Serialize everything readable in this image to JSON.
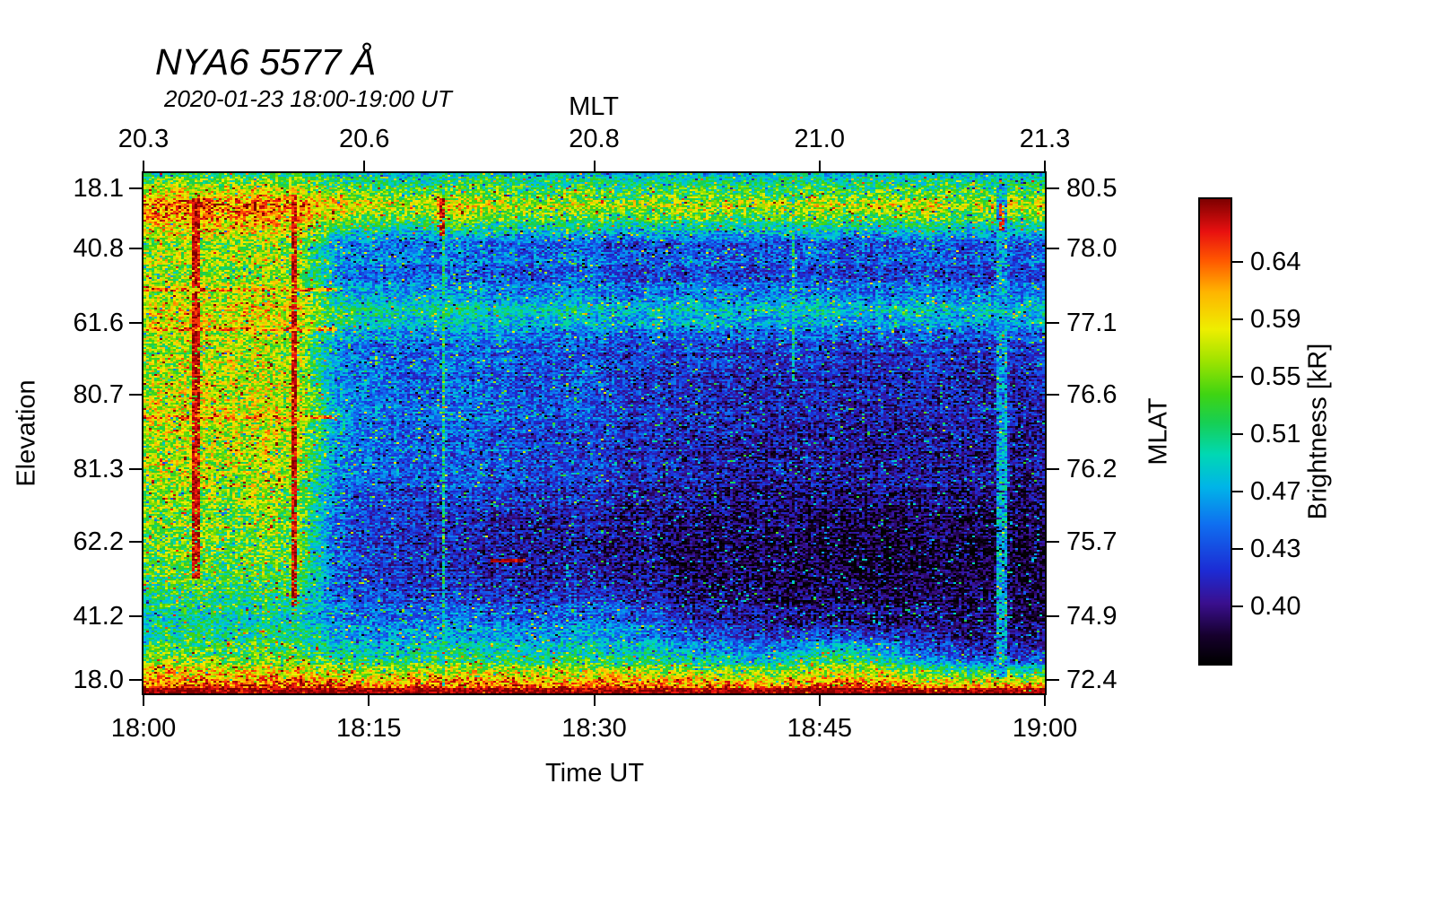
{
  "title": "NYA6 5577 Å",
  "subtitle": "2020-01-23 18:00-19:00 UT",
  "chart_data": {
    "type": "heatmap",
    "title": "NYA6 5577 Å",
    "subtitle": "2020-01-23 18:00-19:00 UT",
    "time_range": [
      "18:00",
      "19:00"
    ],
    "x_axis": {
      "label": "Time UT",
      "ticks": [
        {
          "pos": 0.0,
          "label": "18:00"
        },
        {
          "pos": 0.25,
          "label": "18:15"
        },
        {
          "pos": 0.5,
          "label": "18:30"
        },
        {
          "pos": 0.75,
          "label": "18:45"
        },
        {
          "pos": 1.0,
          "label": "19:00"
        }
      ]
    },
    "top_axis": {
      "label": "MLT",
      "ticks": [
        {
          "pos": 0.0,
          "label": "20.3"
        },
        {
          "pos": 0.245,
          "label": "20.6"
        },
        {
          "pos": 0.5,
          "label": "20.8"
        },
        {
          "pos": 0.75,
          "label": "21.0"
        },
        {
          "pos": 1.0,
          "label": "21.3"
        }
      ]
    },
    "y_axis_left": {
      "label": "Elevation",
      "ticks": [
        {
          "pos": 0.029,
          "label": "18.1"
        },
        {
          "pos": 0.145,
          "label": "40.8"
        },
        {
          "pos": 0.288,
          "label": "61.6"
        },
        {
          "pos": 0.426,
          "label": "80.7"
        },
        {
          "pos": 0.569,
          "label": "81.3"
        },
        {
          "pos": 0.709,
          "label": "62.2"
        },
        {
          "pos": 0.852,
          "label": "41.2"
        },
        {
          "pos": 0.974,
          "label": "18.0"
        }
      ]
    },
    "y_axis_right": {
      "label": "MLAT",
      "ticks": [
        {
          "pos": 0.029,
          "label": "80.5"
        },
        {
          "pos": 0.145,
          "label": "78.0"
        },
        {
          "pos": 0.288,
          "label": "77.1"
        },
        {
          "pos": 0.426,
          "label": "76.6"
        },
        {
          "pos": 0.569,
          "label": "76.2"
        },
        {
          "pos": 0.709,
          "label": "75.7"
        },
        {
          "pos": 0.852,
          "label": "74.9"
        },
        {
          "pos": 0.974,
          "label": "72.4"
        }
      ]
    },
    "colorbar": {
      "label": "Brightness [kR]",
      "vmin": 0.37,
      "vmax": 0.67,
      "ticks": [
        {
          "pos": 0.135,
          "label": "0.64"
        },
        {
          "pos": 0.259,
          "label": "0.59"
        },
        {
          "pos": 0.382,
          "label": "0.55"
        },
        {
          "pos": 0.506,
          "label": "0.51"
        },
        {
          "pos": 0.63,
          "label": "0.47"
        },
        {
          "pos": 0.753,
          "label": "0.43"
        },
        {
          "pos": 0.877,
          "label": "0.40"
        }
      ],
      "stops": [
        [
          0.0,
          "#000000"
        ],
        [
          0.06,
          "#16002c"
        ],
        [
          0.13,
          "#3a0f8e"
        ],
        [
          0.2,
          "#1c2bd4"
        ],
        [
          0.3,
          "#0f6ff0"
        ],
        [
          0.38,
          "#00b4e8"
        ],
        [
          0.45,
          "#00d8b4"
        ],
        [
          0.52,
          "#17cf52"
        ],
        [
          0.58,
          "#3fd412"
        ],
        [
          0.65,
          "#9ce300"
        ],
        [
          0.72,
          "#eeee00"
        ],
        [
          0.8,
          "#ffb400"
        ],
        [
          0.87,
          "#ff5500"
        ],
        [
          0.93,
          "#e81010"
        ],
        [
          1.0,
          "#7e0000"
        ]
      ]
    },
    "grid": {
      "comment": "coarse brightness field in kR, 16 rows (top elev 18.1 to bottom elev 18.0) x 24 cols (18:00 to 19:00)",
      "values": [
        [
          0.52,
          0.53,
          0.52,
          0.53,
          0.52,
          0.5,
          0.5,
          0.49,
          0.5,
          0.5,
          0.49,
          0.5,
          0.49,
          0.49,
          0.5,
          0.49,
          0.49,
          0.5,
          0.49,
          0.49,
          0.5,
          0.49,
          0.49,
          0.5
        ],
        [
          0.63,
          0.64,
          0.63,
          0.64,
          0.63,
          0.6,
          0.58,
          0.57,
          0.6,
          0.58,
          0.57,
          0.58,
          0.57,
          0.57,
          0.58,
          0.57,
          0.57,
          0.58,
          0.57,
          0.58,
          0.59,
          0.57,
          0.58,
          0.58
        ],
        [
          0.56,
          0.57,
          0.56,
          0.57,
          0.56,
          0.48,
          0.47,
          0.46,
          0.47,
          0.46,
          0.46,
          0.46,
          0.45,
          0.45,
          0.46,
          0.45,
          0.45,
          0.46,
          0.45,
          0.45,
          0.46,
          0.45,
          0.45,
          0.46
        ],
        [
          0.56,
          0.57,
          0.56,
          0.57,
          0.56,
          0.47,
          0.46,
          0.46,
          0.46,
          0.45,
          0.45,
          0.46,
          0.45,
          0.44,
          0.45,
          0.44,
          0.44,
          0.45,
          0.44,
          0.44,
          0.45,
          0.44,
          0.44,
          0.45
        ],
        [
          0.58,
          0.59,
          0.58,
          0.59,
          0.58,
          0.52,
          0.51,
          0.5,
          0.51,
          0.5,
          0.5,
          0.5,
          0.49,
          0.49,
          0.5,
          0.49,
          0.49,
          0.5,
          0.49,
          0.49,
          0.5,
          0.49,
          0.49,
          0.5
        ],
        [
          0.56,
          0.57,
          0.57,
          0.57,
          0.56,
          0.47,
          0.46,
          0.45,
          0.46,
          0.45,
          0.45,
          0.45,
          0.44,
          0.44,
          0.44,
          0.44,
          0.43,
          0.44,
          0.43,
          0.43,
          0.44,
          0.43,
          0.43,
          0.44
        ],
        [
          0.57,
          0.58,
          0.57,
          0.58,
          0.57,
          0.47,
          0.46,
          0.45,
          0.46,
          0.45,
          0.45,
          0.45,
          0.44,
          0.43,
          0.43,
          0.43,
          0.42,
          0.43,
          0.42,
          0.42,
          0.43,
          0.42,
          0.42,
          0.43
        ],
        [
          0.58,
          0.58,
          0.58,
          0.58,
          0.58,
          0.48,
          0.46,
          0.45,
          0.46,
          0.45,
          0.45,
          0.45,
          0.44,
          0.43,
          0.43,
          0.42,
          0.42,
          0.42,
          0.42,
          0.42,
          0.42,
          0.42,
          0.42,
          0.42
        ],
        [
          0.57,
          0.58,
          0.57,
          0.58,
          0.57,
          0.47,
          0.46,
          0.45,
          0.45,
          0.45,
          0.44,
          0.44,
          0.43,
          0.43,
          0.42,
          0.42,
          0.41,
          0.42,
          0.41,
          0.41,
          0.42,
          0.41,
          0.41,
          0.42
        ],
        [
          0.56,
          0.57,
          0.56,
          0.57,
          0.56,
          0.46,
          0.45,
          0.44,
          0.45,
          0.44,
          0.44,
          0.44,
          0.43,
          0.42,
          0.42,
          0.41,
          0.41,
          0.41,
          0.41,
          0.41,
          0.41,
          0.41,
          0.41,
          0.41
        ],
        [
          0.55,
          0.56,
          0.55,
          0.56,
          0.55,
          0.45,
          0.44,
          0.43,
          0.43,
          0.42,
          0.42,
          0.42,
          0.41,
          0.41,
          0.4,
          0.4,
          0.4,
          0.4,
          0.39,
          0.39,
          0.4,
          0.39,
          0.39,
          0.4
        ],
        [
          0.54,
          0.55,
          0.54,
          0.55,
          0.54,
          0.45,
          0.43,
          0.42,
          0.42,
          0.41,
          0.41,
          0.41,
          0.4,
          0.4,
          0.39,
          0.39,
          0.39,
          0.39,
          0.38,
          0.38,
          0.39,
          0.38,
          0.38,
          0.38
        ],
        [
          0.52,
          0.53,
          0.52,
          0.53,
          0.52,
          0.45,
          0.44,
          0.43,
          0.43,
          0.42,
          0.42,
          0.43,
          0.42,
          0.41,
          0.4,
          0.4,
          0.39,
          0.39,
          0.39,
          0.39,
          0.39,
          0.39,
          0.39,
          0.39
        ],
        [
          0.5,
          0.51,
          0.5,
          0.51,
          0.5,
          0.47,
          0.46,
          0.46,
          0.47,
          0.46,
          0.46,
          0.47,
          0.46,
          0.45,
          0.43,
          0.42,
          0.41,
          0.41,
          0.41,
          0.4,
          0.41,
          0.4,
          0.4,
          0.4
        ],
        [
          0.55,
          0.56,
          0.55,
          0.55,
          0.55,
          0.52,
          0.51,
          0.52,
          0.53,
          0.52,
          0.51,
          0.52,
          0.52,
          0.51,
          0.5,
          0.49,
          0.48,
          0.52,
          0.53,
          0.5,
          0.46,
          0.44,
          0.44,
          0.44
        ],
        [
          0.66,
          0.66,
          0.66,
          0.66,
          0.66,
          0.66,
          0.65,
          0.66,
          0.66,
          0.66,
          0.66,
          0.66,
          0.66,
          0.65,
          0.66,
          0.66,
          0.65,
          0.66,
          0.66,
          0.66,
          0.66,
          0.65,
          0.66,
          0.66
        ]
      ]
    },
    "features": [
      {
        "kind": "v",
        "x": 0.058,
        "w": 0.007,
        "y0": 0.05,
        "y1": 0.78,
        "value": 0.655
      },
      {
        "kind": "v",
        "x": 0.168,
        "w": 0.007,
        "y0": 0.04,
        "y1": 0.83,
        "value": 0.655
      },
      {
        "kind": "v",
        "x": 0.332,
        "w": 0.004,
        "y0": 0.0,
        "y1": 1.0,
        "value": 0.515
      },
      {
        "kind": "v",
        "x": 0.332,
        "w": 0.007,
        "y0": 0.05,
        "y1": 0.12,
        "value": 0.65
      },
      {
        "kind": "v",
        "x": 0.72,
        "w": 0.004,
        "y0": 0.0,
        "y1": 0.4,
        "value": 0.51
      },
      {
        "kind": "v",
        "x": 0.952,
        "w": 0.012,
        "y0": 0.02,
        "y1": 0.97,
        "value": 0.485
      },
      {
        "kind": "v",
        "x": 0.952,
        "w": 0.008,
        "y0": 0.06,
        "y1": 0.11,
        "value": 0.645
      },
      {
        "kind": "h",
        "y": 0.225,
        "h": 0.007,
        "x0": 0.0,
        "x1": 0.215,
        "value": 0.615
      },
      {
        "kind": "h",
        "y": 0.3,
        "h": 0.007,
        "x0": 0.0,
        "x1": 0.215,
        "value": 0.615
      },
      {
        "kind": "h",
        "y": 0.47,
        "h": 0.007,
        "x0": 0.0,
        "x1": 0.215,
        "value": 0.615
      },
      {
        "kind": "h",
        "y": 0.745,
        "h": 0.008,
        "x0": 0.385,
        "x1": 0.425,
        "value": 0.655
      },
      {
        "kind": "h",
        "y": 0.995,
        "h": 0.014,
        "x0": 0.0,
        "x1": 1.0,
        "value": 0.665
      }
    ],
    "noise": {
      "seed": 1337,
      "amp": 0.07
    }
  }
}
